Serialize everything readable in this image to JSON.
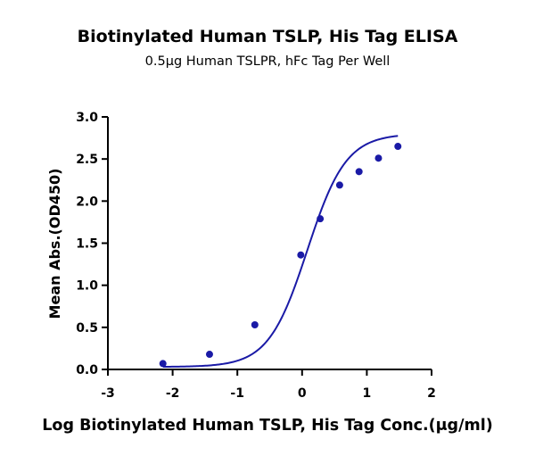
{
  "chart_data": {
    "type": "scatter",
    "title": "Biotinylated Human TSLP, His Tag ELISA",
    "subtitle": "0.5μg Human TSLPR, hFc Tag Per Well",
    "xlabel": "Log Biotinylated Human TSLP, His Tag Conc.(μg/ml)",
    "ylabel": "Mean Abs.(OD450)",
    "xlim": [
      -3,
      2
    ],
    "ylim": [
      0,
      3
    ],
    "x_ticks": [
      "-3",
      "-2",
      "-1",
      "0",
      "1",
      "2"
    ],
    "y_ticks": [
      "0.0",
      "0.5",
      "1.0",
      "1.5",
      "2.0",
      "2.5",
      "3.0"
    ],
    "grid": false,
    "legend": "none",
    "series": [
      {
        "color": "#1a1aa6",
        "points": [
          {
            "x": -2.15,
            "y": 0.07
          },
          {
            "x": -1.43,
            "y": 0.18
          },
          {
            "x": -0.73,
            "y": 0.53
          },
          {
            "x": -0.02,
            "y": 1.36
          },
          {
            "x": 0.28,
            "y": 1.79
          },
          {
            "x": 0.58,
            "y": 2.19
          },
          {
            "x": 0.88,
            "y": 2.35
          },
          {
            "x": 1.18,
            "y": 2.51
          },
          {
            "x": 1.48,
            "y": 2.65
          }
        ],
        "fit": {
          "model": "4PL",
          "bottom": 0.03,
          "top": 2.8,
          "ec50_log": 0.08,
          "hill": 1.45
        }
      }
    ]
  }
}
